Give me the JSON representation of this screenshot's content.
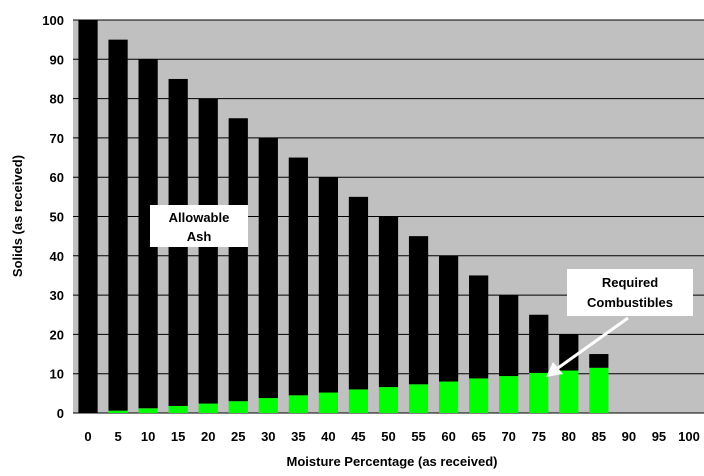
{
  "colors": {
    "plot_bg": "#c0c0c0",
    "grid": "#000000",
    "ash_bar": "#000000",
    "combustibles_bar": "#00ff00",
    "label_box": "#ffffff",
    "arrow": "#ffffff"
  },
  "chart_data": {
    "type": "bar",
    "stacked": true,
    "title": "",
    "xlabel": "Moisture Percentage (as received)",
    "ylabel": "Solids (as received)",
    "ylim": [
      0,
      100
    ],
    "yticks": [
      0,
      10,
      20,
      30,
      40,
      50,
      60,
      70,
      80,
      90,
      100
    ],
    "grid": "horizontal",
    "categories": [
      "0",
      "5",
      "10",
      "15",
      "20",
      "25",
      "30",
      "35",
      "40",
      "45",
      "50",
      "55",
      "60",
      "65",
      "70",
      "75",
      "80",
      "85",
      "90",
      "95",
      "100"
    ],
    "series": [
      {
        "key": "combustibles",
        "color": "#00ff00",
        "values": [
          0,
          0.6,
          1.2,
          1.8,
          2.4,
          3.0,
          3.8,
          4.5,
          5.2,
          6.0,
          6.6,
          7.3,
          8.0,
          8.8,
          9.4,
          10.2,
          10.8,
          11.5,
          0,
          0,
          0
        ]
      },
      {
        "key": "ash",
        "color": "#000000",
        "values": [
          100,
          94.4,
          88.8,
          83.2,
          77.6,
          72.0,
          66.2,
          60.5,
          54.8,
          49.0,
          43.4,
          37.7,
          32.0,
          26.2,
          20.6,
          14.8,
          9.2,
          3.5,
          0,
          0,
          0
        ]
      }
    ],
    "annotations": [
      {
        "key": "allowable_ash",
        "lines": [
          "Allowable",
          "Ash"
        ]
      },
      {
        "key": "required_combustibles",
        "lines": [
          "Required",
          "Combustibles"
        ]
      }
    ]
  }
}
